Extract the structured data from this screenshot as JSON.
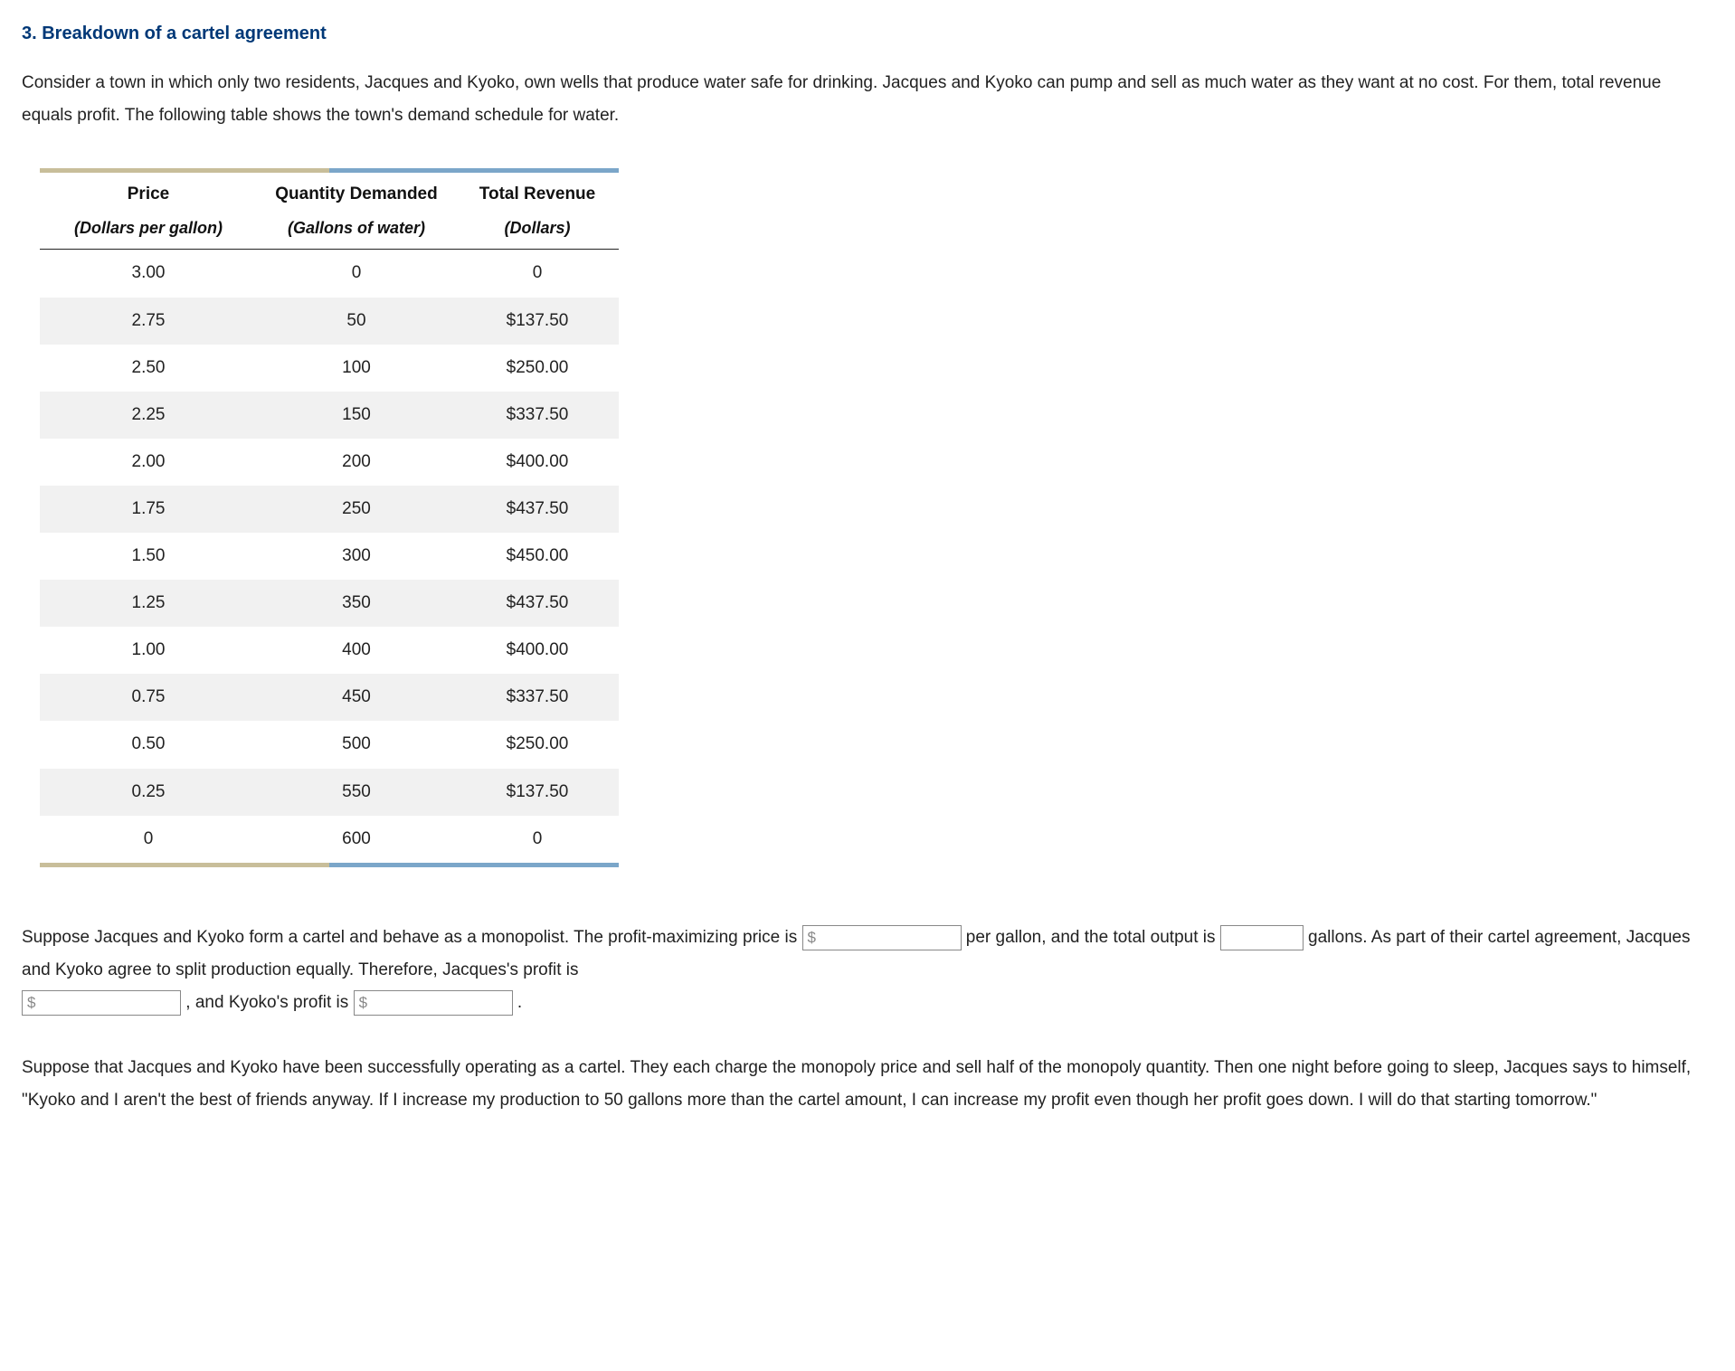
{
  "heading": "3. Breakdown of a cartel agreement",
  "intro": "Consider a town in which only two residents, Jacques and Kyoko, own wells that produce water safe for drinking. Jacques and Kyoko can pump and sell as much water as they want at no cost. For them, total revenue equals profit. The following table shows the town's demand schedule for water.",
  "table": {
    "columns": [
      {
        "title": "Price",
        "sub": "(Dollars per gallon)"
      },
      {
        "title": "Quantity Demanded",
        "sub": "(Gallons of water)"
      },
      {
        "title": "Total Revenue",
        "sub": "(Dollars)"
      }
    ],
    "rows": [
      [
        "3.00",
        "0",
        "0"
      ],
      [
        "2.75",
        "50",
        "$137.50"
      ],
      [
        "2.50",
        "100",
        "$250.00"
      ],
      [
        "2.25",
        "150",
        "$337.50"
      ],
      [
        "2.00",
        "200",
        "$400.00"
      ],
      [
        "1.75",
        "250",
        "$437.50"
      ],
      [
        "1.50",
        "300",
        "$450.00"
      ],
      [
        "1.25",
        "350",
        "$437.50"
      ],
      [
        "1.00",
        "400",
        "$400.00"
      ],
      [
        "0.75",
        "450",
        "$337.50"
      ],
      [
        "0.50",
        "500",
        "$250.00"
      ],
      [
        "0.25",
        "550",
        "$137.50"
      ],
      [
        "0",
        "600",
        "0"
      ]
    ],
    "bar_colors": {
      "gold": "#c8be9a",
      "blue": "#7ba6c9"
    }
  },
  "q1": {
    "t1": "Suppose Jacques and Kyoko form a cartel and behave as a monopolist. The profit-maximizing price is ",
    "t2": " per gallon, and the total output is ",
    "t3": " gallons. As part of their cartel agreement, Jacques and Kyoko agree to split production equally. Therefore, Jacques's profit is ",
    "t4": " , and Kyoko's profit is ",
    "t5": " ."
  },
  "q2": "Suppose that Jacques and Kyoko have been successfully operating as a cartel. They each charge the monopoly price and sell half of the monopoly quantity. Then one night before going to sleep, Jacques says to himself, \"Kyoko and I aren't the best of friends anyway. If I increase my production to 50 gallons more than the cartel amount, I can increase my profit even though her profit goes down. I will do that starting tomorrow.\"",
  "dollar_sym": "$"
}
